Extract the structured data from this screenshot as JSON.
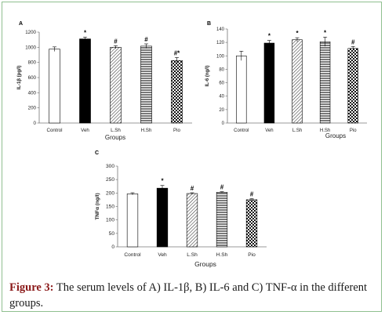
{
  "figure": {
    "label": "Figure 3:",
    "caption": "The serum levels of A) IL-1β, B) IL-6 and C) TNF-α in the different groups."
  },
  "chart_data": [
    {
      "panel": "A",
      "type": "bar",
      "categories": [
        "Control",
        "Veh",
        "L.Sh",
        "H.Sh",
        "Pio"
      ],
      "values": [
        975,
        1110,
        1000,
        1015,
        825
      ],
      "errors": [
        30,
        25,
        20,
        30,
        40
      ],
      "annotations": [
        "",
        "*",
        "#",
        "#",
        "#*"
      ],
      "fills": [
        "white",
        "black",
        "diagonal",
        "horizontal",
        "checker"
      ],
      "ylabel": "IL-1β (pg/l)",
      "xlabel": "Groups",
      "ylim": [
        0,
        1200
      ],
      "yticks": [
        "0",
        "200",
        "400",
        "600",
        "800",
        "1000",
        "1200"
      ]
    },
    {
      "panel": "B",
      "type": "bar",
      "categories": [
        "Control",
        "Veh",
        "L.Sh",
        "H.Sh",
        "Pio"
      ],
      "values": [
        100,
        119,
        124,
        121,
        111
      ],
      "errors": [
        7,
        4,
        3,
        7,
        3
      ],
      "annotations": [
        "",
        "*",
        "*",
        "*",
        "#"
      ],
      "fills": [
        "white",
        "black",
        "diagonal",
        "horizontal",
        "checker"
      ],
      "ylabel": "IL-6 (ng/l)",
      "xlabel": "Groups",
      "ylim": [
        0,
        140
      ],
      "yticks": [
        "0",
        "20",
        "40",
        "60",
        "80",
        "100",
        "120",
        "140"
      ]
    },
    {
      "panel": "C",
      "type": "bar",
      "categories": [
        "Control",
        "Veh",
        "L.Sh",
        "H.Sh",
        "Pio"
      ],
      "values": [
        197,
        218,
        198,
        203,
        175
      ],
      "errors": [
        4,
        10,
        3,
        2,
        4
      ],
      "annotations": [
        "",
        "*",
        "#",
        "#",
        "#"
      ],
      "fills": [
        "white",
        "black",
        "diagonal",
        "horizontal",
        "checker"
      ],
      "ylabel": "TNFα (ng/l)",
      "xlabel": "Groups",
      "ylim": [
        0,
        300
      ],
      "yticks": [
        "0",
        "50",
        "100",
        "150",
        "200",
        "250",
        "300"
      ]
    }
  ]
}
